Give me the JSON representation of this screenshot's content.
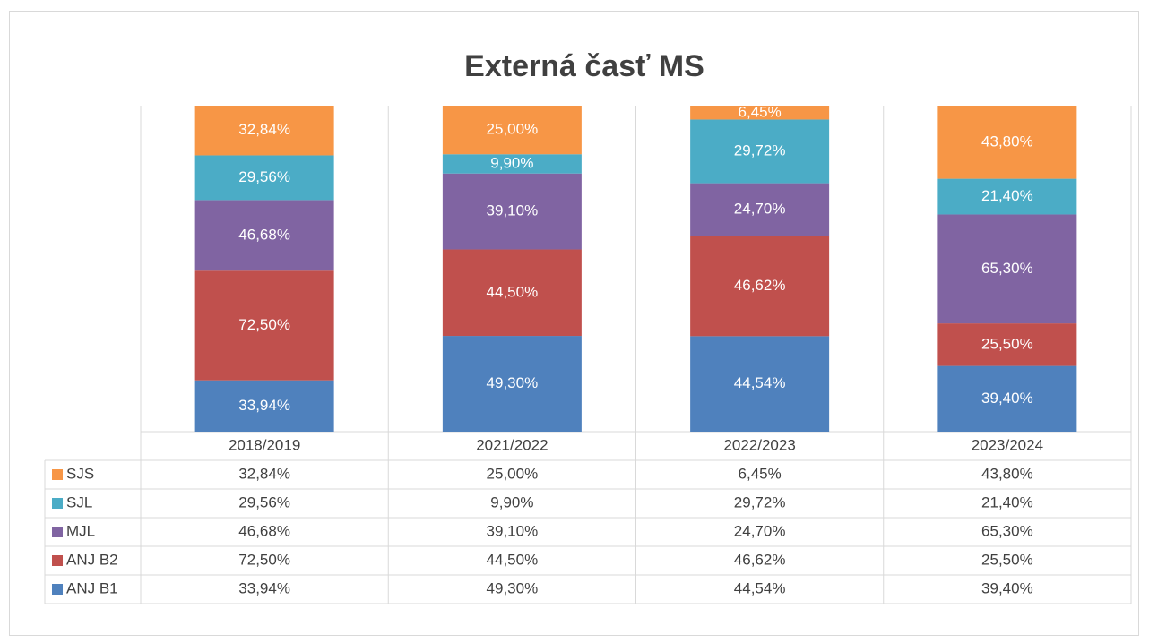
{
  "chart_data": {
    "type": "bar",
    "stacked": "percent",
    "title": "Externá časť MS",
    "categories": [
      "2018/2019",
      "2021/2022",
      "2022/2023",
      "2023/2024"
    ],
    "series": [
      {
        "name": "ANJ B1",
        "color": "#4f81bd",
        "values": [
          33.94,
          49.3,
          44.54,
          39.4
        ],
        "value_labels": [
          "33,94%",
          "49,30%",
          "44,54%",
          "39,40%"
        ]
      },
      {
        "name": "ANJ B2",
        "color": "#c0504d",
        "values": [
          72.5,
          44.5,
          46.62,
          25.5
        ],
        "value_labels": [
          "72,50%",
          "44,50%",
          "46,62%",
          "25,50%"
        ]
      },
      {
        "name": "MJL",
        "color": "#8064a2",
        "values": [
          46.68,
          39.1,
          24.7,
          65.3
        ],
        "value_labels": [
          "46,68%",
          "39,10%",
          "24,70%",
          "65,30%"
        ]
      },
      {
        "name": "SJL",
        "color": "#4bacc6",
        "values": [
          29.56,
          9.9,
          29.72,
          21.4
        ],
        "value_labels": [
          "29,56%",
          "9,90%",
          "29,72%",
          "21,40%"
        ]
      },
      {
        "name": "SJS",
        "color": "#f79646",
        "values": [
          32.84,
          25.0,
          6.45,
          43.8
        ],
        "value_labels": [
          "32,84%",
          "25,00%",
          "6,45%",
          "43,80%"
        ]
      }
    ],
    "data_table": true
  }
}
